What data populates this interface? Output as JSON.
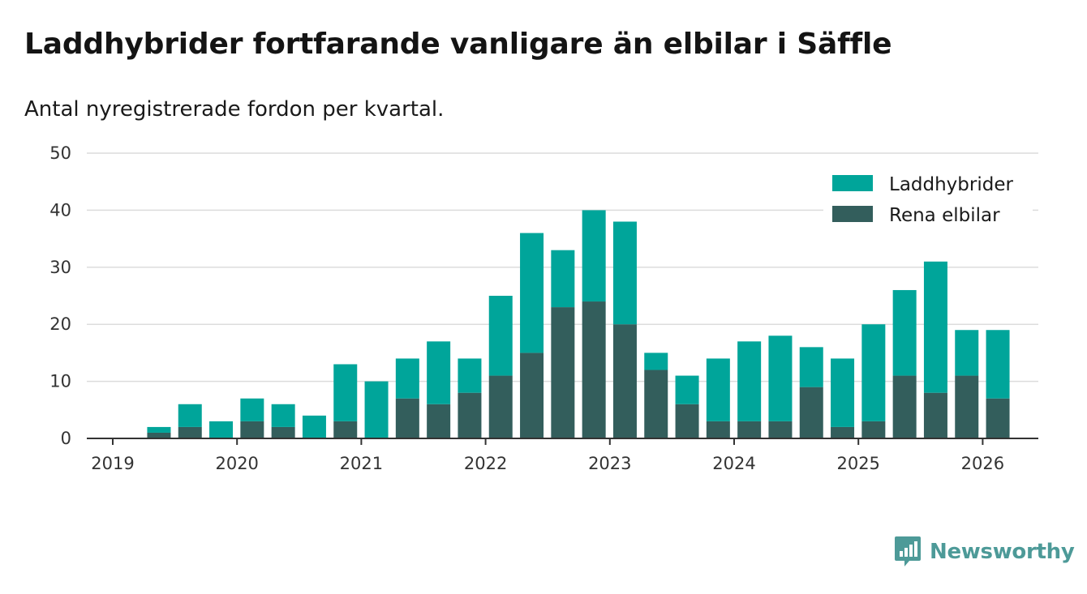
{
  "chart_data": {
    "type": "bar",
    "stacked": true,
    "title": "Laddhybrider fortfarande vanligare än elbilar i Säffle",
    "subtitle": "Antal nyregistrerade fordon per kvartal.",
    "xlabel": "",
    "ylabel": "",
    "ylim": [
      0,
      50
    ],
    "y_ticks": [
      0,
      10,
      20,
      30,
      40,
      50
    ],
    "x_ticks": [
      "2019",
      "2020",
      "2021",
      "2022",
      "2023",
      "2024",
      "2025",
      "2026"
    ],
    "grid": true,
    "legend_position": "top-right",
    "categories": [
      "2019 Q2",
      "2019 Q3",
      "2019 Q4",
      "2020 Q1",
      "2020 Q2",
      "2020 Q3",
      "2020 Q4",
      "2021 Q1",
      "2021 Q2",
      "2021 Q3",
      "2021 Q4",
      "2022 Q1",
      "2022 Q2",
      "2022 Q3",
      "2022 Q4",
      "2023 Q1",
      "2023 Q2",
      "2023 Q3",
      "2023 Q4",
      "2024 Q1",
      "2024 Q2",
      "2024 Q3",
      "2024 Q4",
      "2025 Q1",
      "2025 Q2",
      "2025 Q3",
      "2025 Q4",
      "2026 Q1"
    ],
    "series": [
      {
        "name": "Rena elbilar",
        "color": "#335e5c",
        "values": [
          1,
          2,
          0,
          3,
          2,
          0,
          3,
          0,
          7,
          6,
          8,
          11,
          15,
          23,
          24,
          20,
          12,
          6,
          3,
          3,
          3,
          9,
          2,
          3,
          11,
          8,
          11,
          7
        ]
      },
      {
        "name": "Laddhybrider",
        "color": "#00a59a",
        "values": [
          1,
          4,
          3,
          4,
          4,
          4,
          10,
          10,
          7,
          11,
          6,
          14,
          21,
          10,
          16,
          18,
          3,
          5,
          11,
          14,
          15,
          7,
          12,
          17,
          15,
          23,
          8,
          12
        ]
      }
    ]
  },
  "legend": {
    "items": [
      {
        "label": "Laddhybrider",
        "color": "#00a59a"
      },
      {
        "label": "Rena elbilar",
        "color": "#335e5c"
      }
    ]
  },
  "brand": {
    "name": "Newsworthy",
    "color": "#4d9a98"
  }
}
